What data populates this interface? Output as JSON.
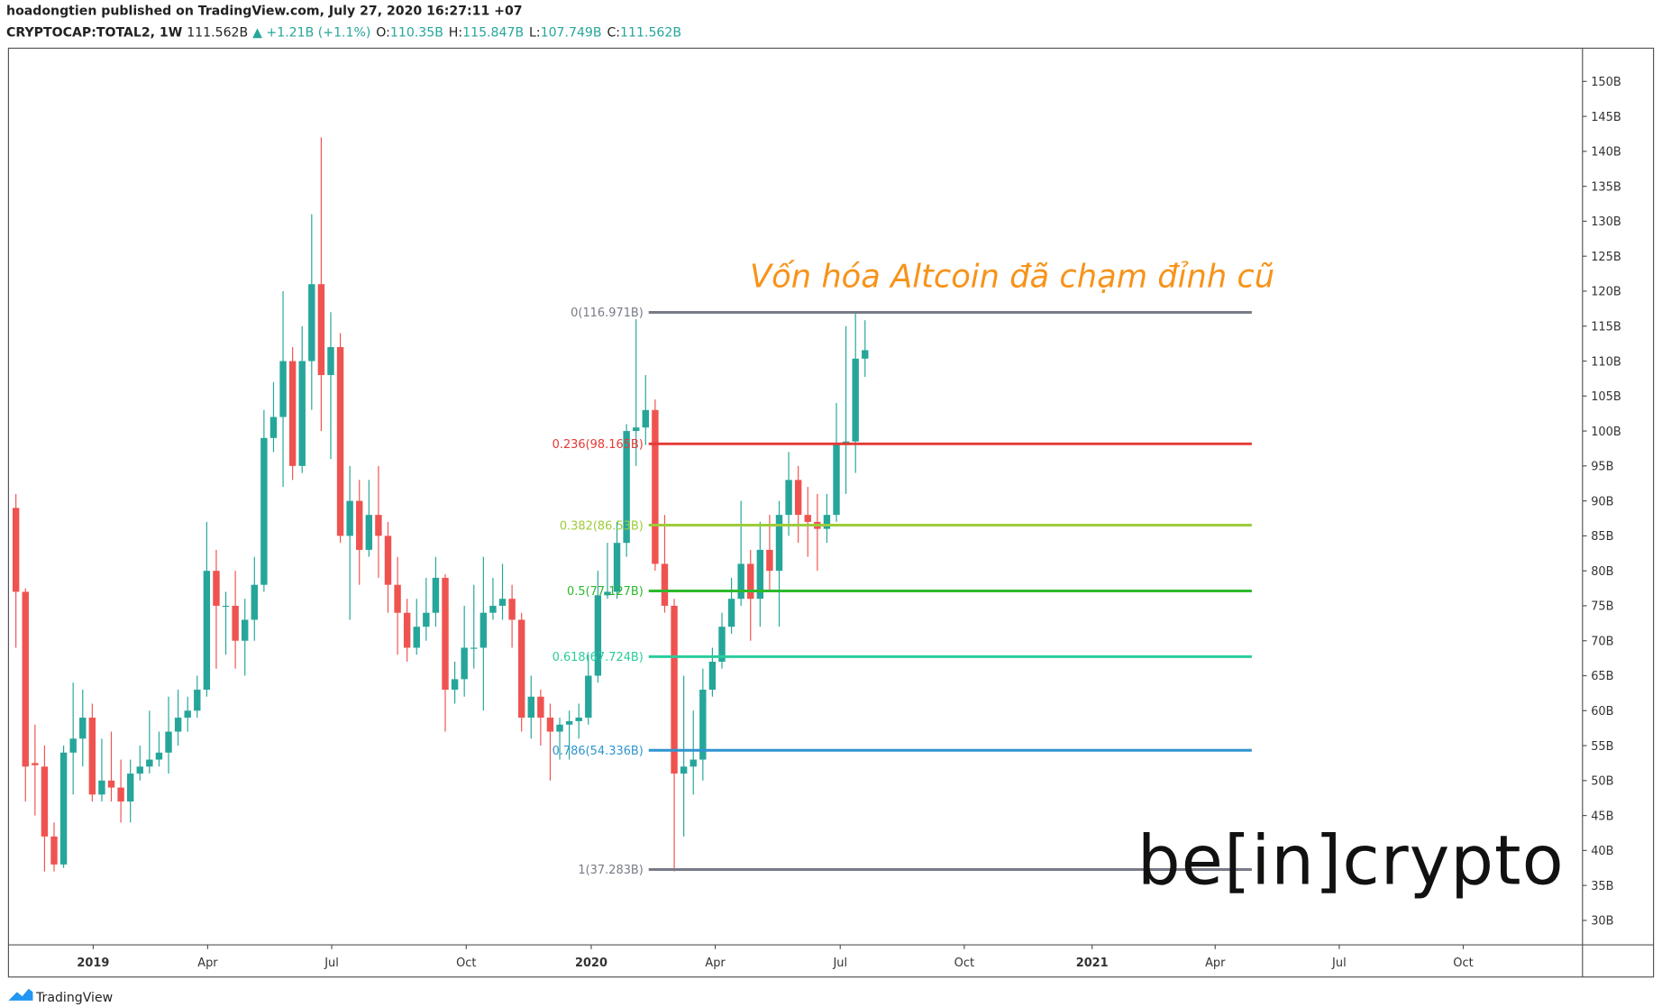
{
  "header": {
    "publisher": "hoadongtien published on TradingView.com, July 27, 2020 16:27:11 +07",
    "symbol": "CRYPTOCAP:TOTAL2, 1W",
    "price": "111.562B",
    "change": "▲ +1.21B (+1.1%)",
    "ohlc": [
      {
        "key": "O:",
        "value": "110.35B"
      },
      {
        "key": "H:",
        "value": "115.847B"
      },
      {
        "key": "L:",
        "value": "107.749B"
      },
      {
        "key": "C:",
        "value": "111.562B"
      }
    ]
  },
  "chart_data": {
    "type": "candlestick",
    "annotation": "Vốn hóa Altcoin đã chạm đỉnh cũ",
    "up_color": "#26a69a",
    "down_color": "#ef5350",
    "open": [
      89,
      77,
      52.5,
      52,
      42,
      38,
      54,
      56,
      59,
      48,
      50,
      49,
      47,
      51,
      52,
      53,
      54,
      57,
      59,
      60,
      63,
      80,
      75,
      75,
      70,
      73,
      78,
      99,
      102,
      110,
      95,
      110,
      121,
      108,
      112,
      85,
      90,
      83,
      88,
      85,
      78,
      74,
      69,
      72,
      74,
      79,
      63,
      64.5,
      69,
      69,
      74,
      75,
      76,
      73,
      59,
      62,
      59,
      57,
      58,
      58.5,
      59,
      65,
      76.5,
      77,
      84,
      100,
      100.5,
      103,
      81,
      75,
      51,
      52,
      53,
      63,
      67,
      72,
      76,
      81,
      76,
      83,
      80,
      88,
      93,
      88,
      87,
      86,
      88,
      98,
      98.5,
      110.35
    ],
    "high": [
      91,
      77.5,
      58,
      55,
      44,
      55,
      64,
      63,
      61,
      56,
      57,
      53,
      53,
      55,
      60,
      57,
      62,
      63,
      62,
      65,
      87,
      83,
      77,
      80,
      76,
      82,
      103,
      107,
      120,
      112,
      115,
      131,
      142,
      117,
      114,
      95,
      93,
      93,
      95,
      87,
      82,
      76,
      76,
      79,
      82,
      79.5,
      67,
      75,
      78,
      82,
      79,
      81,
      78,
      74,
      65,
      63,
      61,
      59,
      60,
      61,
      68,
      80,
      84,
      87,
      101,
      116,
      108,
      104.5,
      88,
      76,
      65,
      60,
      66,
      69,
      74,
      79,
      90,
      83,
      87,
      88,
      90,
      97,
      95,
      92,
      91,
      91,
      104,
      115,
      117,
      115.847
    ],
    "low": [
      69,
      47,
      45,
      37,
      37,
      37.5,
      48,
      52,
      47,
      47,
      47,
      44,
      44,
      50,
      51,
      52,
      51,
      55,
      57,
      59,
      62,
      66,
      68,
      66,
      65,
      70,
      77,
      97,
      92,
      93,
      94,
      103,
      100,
      96,
      84,
      73,
      78,
      82,
      79,
      74,
      68,
      67,
      68,
      70,
      72,
      57,
      61,
      62,
      66,
      60,
      73,
      73,
      69,
      57,
      56,
      55,
      50,
      53,
      53,
      56,
      58,
      64,
      76,
      76,
      82,
      95,
      98,
      80,
      74,
      37,
      42,
      48,
      50,
      62,
      66,
      71,
      75,
      70,
      72,
      77,
      72,
      85,
      84,
      82,
      80,
      84,
      87,
      91,
      94,
      107.749
    ],
    "close": [
      77,
      52,
      52.2,
      42,
      38,
      54,
      56,
      59,
      48,
      50,
      49,
      47,
      51,
      52,
      53,
      54,
      57,
      59,
      60,
      63,
      80,
      75,
      75,
      70,
      73,
      78,
      99,
      102,
      110,
      95,
      110,
      121,
      108,
      112,
      85,
      90,
      83,
      88,
      85,
      78,
      74,
      69,
      72,
      74,
      79,
      63,
      64.5,
      69,
      69,
      74,
      75,
      76,
      73,
      59,
      62,
      59,
      57,
      58,
      58.5,
      59,
      65,
      76.5,
      77,
      84,
      100,
      100.5,
      103,
      81,
      75,
      51,
      52,
      53,
      63,
      67,
      72,
      76,
      81,
      76,
      83,
      80,
      88,
      93,
      88,
      87,
      86,
      88,
      98,
      98.5,
      110.35,
      111.562
    ],
    "levels": [
      {
        "label": "0(116.971B)",
        "value": 116.971,
        "color": "#787b86"
      },
      {
        "label": "0.236(98.165B)",
        "value": 98.165,
        "color": "#e53935"
      },
      {
        "label": "0.382(86.53B)",
        "value": 86.53,
        "color": "#9ccc3a"
      },
      {
        "label": "0.5(77.127B)",
        "value": 77.127,
        "color": "#2db82d"
      },
      {
        "label": "0.618(67.724B)",
        "value": 67.724,
        "color": "#2bcc9c"
      },
      {
        "label": "0.786(54.336B)",
        "value": 54.336,
        "color": "#2e94d0"
      },
      {
        "label": "1(37.283B)",
        "value": 37.283,
        "color": "#787b86"
      }
    ],
    "ylim": [
      26.5,
      154.75
    ],
    "yticks": [
      {
        "value": 30,
        "label": "30B"
      },
      {
        "value": 35,
        "label": "35B"
      },
      {
        "value": 40,
        "label": "40B"
      },
      {
        "value": 45,
        "label": "45B"
      },
      {
        "value": 50,
        "label": "50B"
      },
      {
        "value": 55,
        "label": "55B"
      },
      {
        "value": 60,
        "label": "60B"
      },
      {
        "value": 65,
        "label": "65B"
      },
      {
        "value": 70,
        "label": "70B"
      },
      {
        "value": 75,
        "label": "75B"
      },
      {
        "value": 80,
        "label": "80B"
      },
      {
        "value": 85,
        "label": "85B"
      },
      {
        "value": 90,
        "label": "90B"
      },
      {
        "value": 95,
        "label": "95B"
      },
      {
        "value": 100,
        "label": "100B"
      },
      {
        "value": 105,
        "label": "105B"
      },
      {
        "value": 110,
        "label": "110B"
      },
      {
        "value": 115,
        "label": "115B"
      },
      {
        "value": 120,
        "label": "120B"
      },
      {
        "value": 125,
        "label": "125B"
      },
      {
        "value": 130,
        "label": "130B"
      },
      {
        "value": 135,
        "label": "135B"
      },
      {
        "value": 140,
        "label": "140B"
      },
      {
        "value": 145,
        "label": "145B"
      },
      {
        "value": 150,
        "label": "150B"
      }
    ],
    "xlim": [
      -0.78,
      164.2
    ],
    "xticks": [
      {
        "value": 8.1,
        "label": "2019"
      },
      {
        "value": 20.1,
        "label": "Apr"
      },
      {
        "value": 33.1,
        "label": "Jul"
      },
      {
        "value": 47.2,
        "label": "Oct"
      },
      {
        "value": 60.3,
        "label": "2020"
      },
      {
        "value": 73.3,
        "label": "Apr"
      },
      {
        "value": 86.4,
        "label": "Jul"
      },
      {
        "value": 99.4,
        "label": "Oct"
      },
      {
        "value": 112.8,
        "label": "2021"
      },
      {
        "value": 125.7,
        "label": "Apr"
      },
      {
        "value": 138.7,
        "label": "Jul"
      },
      {
        "value": 151.7,
        "label": "Oct"
      }
    ]
  },
  "watermark": "be[in]crypto",
  "footer": "TradingView"
}
